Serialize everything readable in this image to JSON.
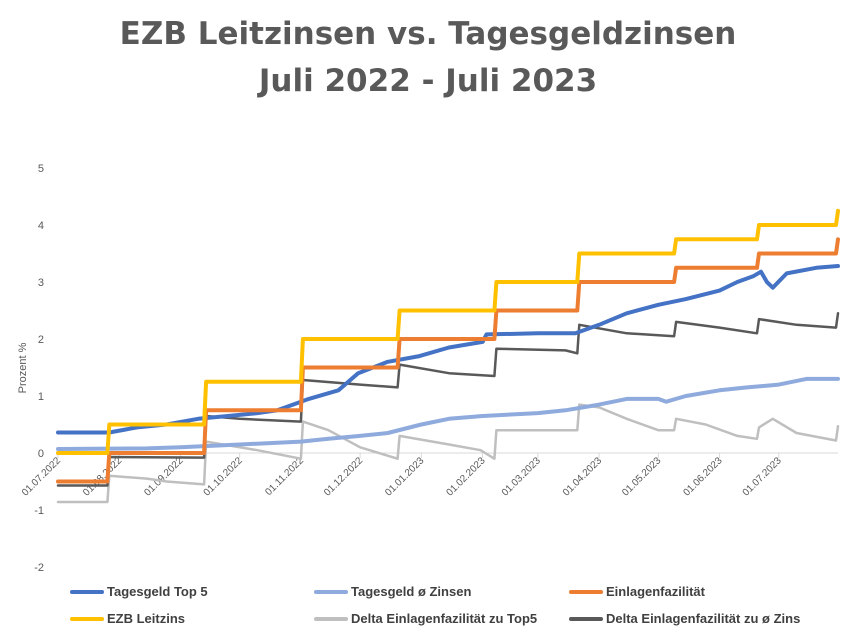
{
  "chart_data": {
    "type": "line",
    "title": "EZB Leitzinsen vs. Tagesgeldzinsen",
    "subtitle": "Juli 2022 - Juli 2023",
    "ylabel": "Prozent %",
    "xlabel": "",
    "ylim": [
      -2,
      5
    ],
    "yticks": [
      "-2",
      "-1",
      "0",
      "1",
      "2",
      "3",
      "4",
      "5"
    ],
    "x_tick_labels": [
      "01.07.2022",
      "01.08.2022",
      "01.09.2022",
      "01.10.2022",
      "01.11.2022",
      "01.12.2022",
      "01.01.2023",
      "01.02.2023",
      "01.03.2023",
      "01.04.2023",
      "01.05.2023",
      "01.06.2023",
      "01.07.2023"
    ],
    "x_range": [
      "01.07.2022",
      "31.07.2023"
    ],
    "legend_position": "bottom",
    "grid": false,
    "series": [
      {
        "name": "Tagesgeld Top 5",
        "color": "#4472C4",
        "width": 4,
        "points": [
          [
            "01.07.2022",
            0.36
          ],
          [
            "27.07.2022",
            0.36
          ],
          [
            "10.08.2022",
            0.45
          ],
          [
            "25.08.2022",
            0.5
          ],
          [
            "10.09.2022",
            0.6
          ],
          [
            "25.09.2022",
            0.65
          ],
          [
            "10.10.2022",
            0.7
          ],
          [
            "20.10.2022",
            0.75
          ],
          [
            "28.10.2022",
            0.85
          ],
          [
            "05.11.2022",
            0.95
          ],
          [
            "20.11.2022",
            1.1
          ],
          [
            "30.11.2022",
            1.4
          ],
          [
            "15.12.2022",
            1.6
          ],
          [
            "31.12.2022",
            1.7
          ],
          [
            "15.01.2023",
            1.85
          ],
          [
            "01.02.2023",
            1.95
          ],
          [
            "03.02.2023",
            2.08
          ],
          [
            "01.03.2023",
            2.1
          ],
          [
            "10.03.2023",
            2.1
          ],
          [
            "20.03.2023",
            2.1
          ],
          [
            "01.04.2023",
            2.25
          ],
          [
            "15.04.2023",
            2.45
          ],
          [
            "01.05.2023",
            2.6
          ],
          [
            "15.05.2023",
            2.7
          ],
          [
            "01.06.2023",
            2.85
          ],
          [
            "10.06.2023",
            3.0
          ],
          [
            "18.06.2023",
            3.1
          ],
          [
            "22.06.2023",
            3.18
          ],
          [
            "25.06.2023",
            3.0
          ],
          [
            "28.06.2023",
            2.9
          ],
          [
            "05.07.2023",
            3.15
          ],
          [
            "20.07.2023",
            3.25
          ],
          [
            "31.07.2023",
            3.28
          ]
        ]
      },
      {
        "name": "Tagesgeld ø Zinsen",
        "color": "#8FAADC",
        "width": 4,
        "points": [
          [
            "01.07.2022",
            0.07
          ],
          [
            "15.08.2022",
            0.08
          ],
          [
            "01.09.2022",
            0.1
          ],
          [
            "01.10.2022",
            0.15
          ],
          [
            "01.11.2022",
            0.2
          ],
          [
            "15.11.2022",
            0.25
          ],
          [
            "01.12.2022",
            0.3
          ],
          [
            "15.12.2022",
            0.35
          ],
          [
            "01.01.2023",
            0.5
          ],
          [
            "15.01.2023",
            0.6
          ],
          [
            "01.02.2023",
            0.65
          ],
          [
            "01.03.2023",
            0.7
          ],
          [
            "15.03.2023",
            0.75
          ],
          [
            "01.04.2023",
            0.85
          ],
          [
            "15.04.2023",
            0.95
          ],
          [
            "01.05.2023",
            0.95
          ],
          [
            "05.05.2023",
            0.9
          ],
          [
            "15.05.2023",
            1.0
          ],
          [
            "01.06.2023",
            1.1
          ],
          [
            "15.06.2023",
            1.15
          ],
          [
            "01.07.2023",
            1.2
          ],
          [
            "15.07.2023",
            1.3
          ],
          [
            "31.07.2023",
            1.3
          ]
        ]
      },
      {
        "name": "Einlagenfazilität",
        "color": "#ED7D31",
        "width": 4,
        "points": [
          [
            "01.07.2022",
            -0.5
          ],
          [
            "26.07.2022",
            -0.5
          ],
          [
            "27.07.2022",
            0.0
          ],
          [
            "13.09.2022",
            0.0
          ],
          [
            "14.09.2022",
            0.75
          ],
          [
            "01.11.2022",
            0.75
          ],
          [
            "02.11.2022",
            1.5
          ],
          [
            "20.12.2022",
            1.5
          ],
          [
            "21.12.2022",
            2.0
          ],
          [
            "07.02.2023",
            2.0
          ],
          [
            "08.02.2023",
            2.5
          ],
          [
            "21.03.2023",
            2.5
          ],
          [
            "22.03.2023",
            3.0
          ],
          [
            "09.05.2023",
            3.0
          ],
          [
            "10.05.2023",
            3.25
          ],
          [
            "20.06.2023",
            3.25
          ],
          [
            "21.06.2023",
            3.5
          ],
          [
            "30.07.2023",
            3.5
          ],
          [
            "31.07.2023",
            3.75
          ]
        ]
      },
      {
        "name": "EZB Leitzins",
        "color": "#FFC000",
        "width": 4,
        "points": [
          [
            "01.07.2022",
            0.0
          ],
          [
            "26.07.2022",
            0.0
          ],
          [
            "27.07.2022",
            0.5
          ],
          [
            "13.09.2022",
            0.5
          ],
          [
            "14.09.2022",
            1.25
          ],
          [
            "01.11.2022",
            1.25
          ],
          [
            "02.11.2022",
            2.0
          ],
          [
            "20.12.2022",
            2.0
          ],
          [
            "21.12.2022",
            2.5
          ],
          [
            "07.02.2023",
            2.5
          ],
          [
            "08.02.2023",
            3.0
          ],
          [
            "21.03.2023",
            3.0
          ],
          [
            "22.03.2023",
            3.5
          ],
          [
            "09.05.2023",
            3.5
          ],
          [
            "10.05.2023",
            3.75
          ],
          [
            "20.06.2023",
            3.75
          ],
          [
            "21.06.2023",
            4.0
          ],
          [
            "30.07.2023",
            4.0
          ],
          [
            "31.07.2023",
            4.25
          ]
        ]
      },
      {
        "name": "Delta Einlagenfazilität zu Top5",
        "color": "#BFBFBF",
        "width": 2.5,
        "points": [
          [
            "01.07.2022",
            -0.86
          ],
          [
            "26.07.2022",
            -0.86
          ],
          [
            "27.07.2022",
            -0.4
          ],
          [
            "15.08.2022",
            -0.45
          ],
          [
            "25.08.2022",
            -0.5
          ],
          [
            "13.09.2022",
            -0.55
          ],
          [
            "14.09.2022",
            0.2
          ],
          [
            "01.10.2022",
            0.1
          ],
          [
            "10.10.2022",
            0.05
          ],
          [
            "01.11.2022",
            -0.1
          ],
          [
            "02.11.2022",
            0.55
          ],
          [
            "15.11.2022",
            0.4
          ],
          [
            "01.12.2022",
            0.1
          ],
          [
            "20.12.2022",
            -0.1
          ],
          [
            "21.12.2022",
            0.3
          ],
          [
            "15.01.2023",
            0.15
          ],
          [
            "31.01.2023",
            0.05
          ],
          [
            "07.02.2023",
            -0.1
          ],
          [
            "08.02.2023",
            0.4
          ],
          [
            "21.03.2023",
            0.4
          ],
          [
            "22.03.2023",
            0.85
          ],
          [
            "01.04.2023",
            0.8
          ],
          [
            "15.04.2023",
            0.6
          ],
          [
            "01.05.2023",
            0.4
          ],
          [
            "09.05.2023",
            0.4
          ],
          [
            "10.05.2023",
            0.6
          ],
          [
            "25.05.2023",
            0.5
          ],
          [
            "10.06.2023",
            0.3
          ],
          [
            "20.06.2023",
            0.25
          ],
          [
            "21.06.2023",
            0.45
          ],
          [
            "28.06.2023",
            0.6
          ],
          [
            "10.07.2023",
            0.35
          ],
          [
            "30.07.2023",
            0.22
          ],
          [
            "31.07.2023",
            0.47
          ]
        ]
      },
      {
        "name": "Delta Einlagenfazilität zu ø Zins",
        "color": "#595959",
        "width": 2.5,
        "points": [
          [
            "01.07.2022",
            -0.57
          ],
          [
            "26.07.2022",
            -0.57
          ],
          [
            "27.07.2022",
            -0.07
          ],
          [
            "13.09.2022",
            -0.08
          ],
          [
            "14.09.2022",
            0.65
          ],
          [
            "01.10.2022",
            0.6
          ],
          [
            "01.11.2022",
            0.55
          ],
          [
            "02.11.2022",
            1.28
          ],
          [
            "01.12.2022",
            1.2
          ],
          [
            "20.12.2022",
            1.15
          ],
          [
            "21.12.2022",
            1.55
          ],
          [
            "15.01.2023",
            1.4
          ],
          [
            "07.02.2023",
            1.35
          ],
          [
            "08.02.2023",
            1.83
          ],
          [
            "15.03.2023",
            1.8
          ],
          [
            "21.03.2023",
            1.75
          ],
          [
            "22.03.2023",
            2.25
          ],
          [
            "15.04.2023",
            2.1
          ],
          [
            "09.05.2023",
            2.05
          ],
          [
            "10.05.2023",
            2.3
          ],
          [
            "01.06.2023",
            2.2
          ],
          [
            "20.06.2023",
            2.1
          ],
          [
            "21.06.2023",
            2.35
          ],
          [
            "10.07.2023",
            2.25
          ],
          [
            "30.07.2023",
            2.2
          ],
          [
            "31.07.2023",
            2.45
          ]
        ]
      }
    ]
  }
}
